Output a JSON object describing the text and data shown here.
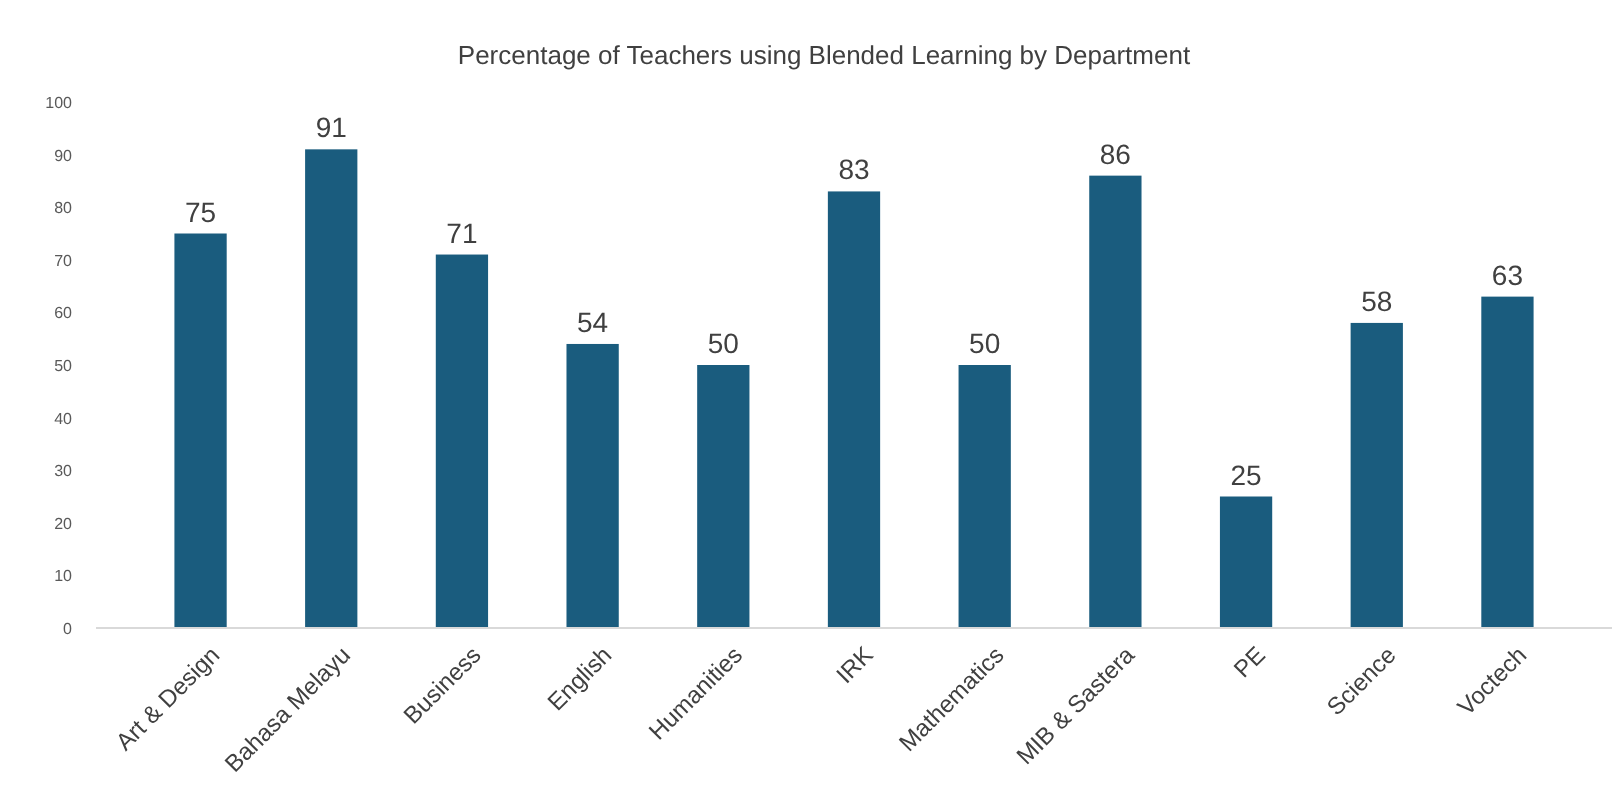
{
  "chart_data": {
    "type": "bar",
    "title": "Percentage of Teachers using Blended Learning by Department",
    "categories": [
      "Art & Design",
      "Bahasa Melayu",
      "Business",
      "English",
      "Humanities",
      "IRK",
      "Mathematics",
      "MIB & Sastera",
      "PE",
      "Science",
      "Voctech"
    ],
    "values": [
      75,
      91,
      71,
      54,
      50,
      83,
      50,
      86,
      25,
      58,
      63
    ],
    "color": "#1a5c7e",
    "ylim": [
      0,
      100
    ],
    "yticks": [
      0,
      10,
      20,
      30,
      40,
      50,
      60,
      70,
      80,
      90,
      100
    ],
    "grid": false,
    "data_labels": true
  }
}
